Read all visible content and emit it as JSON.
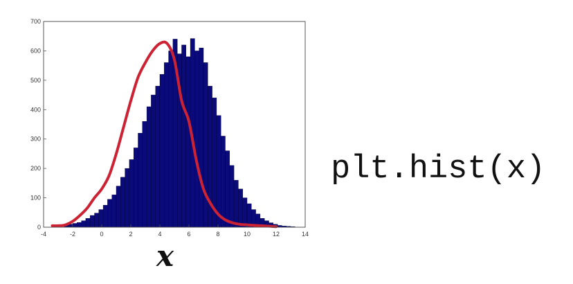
{
  "code_text": "plt.hist(x)",
  "x_axis_label": "x",
  "colors": {
    "bar_fill": "#0a0a7a",
    "bar_edge": "#000033",
    "curve": "#cc2233",
    "axis": "#555555"
  },
  "chart_data": {
    "type": "bar",
    "bin_width": 0.3,
    "bin_start": -2.6,
    "values": [
      8,
      10,
      13,
      16,
      22,
      30,
      40,
      48,
      60,
      75,
      95,
      110,
      140,
      170,
      200,
      230,
      270,
      320,
      360,
      410,
      450,
      480,
      520,
      560,
      600,
      640,
      590,
      620,
      580,
      642,
      600,
      610,
      560,
      480,
      440,
      380,
      310,
      260,
      210,
      160,
      130,
      100,
      80,
      60,
      45,
      30,
      22,
      15,
      10,
      6,
      4,
      3,
      2
    ],
    "density_curve": {
      "x": [
        -3.4,
        -3.0,
        -2.5,
        -2.0,
        -1.5,
        -1.0,
        -0.5,
        0.0,
        0.5,
        1.0,
        1.5,
        2.0,
        2.5,
        3.0,
        3.5,
        4.0,
        4.5,
        5.0,
        5.5,
        6.0,
        6.5,
        7.0,
        7.5,
        8.0,
        8.5,
        9.0,
        9.5,
        10.0,
        11.0,
        12.0
      ],
      "y": [
        5,
        5,
        8,
        20,
        40,
        65,
        100,
        130,
        175,
        250,
        340,
        430,
        510,
        560,
        600,
        625,
        625,
        570,
        430,
        360,
        230,
        130,
        80,
        45,
        25,
        15,
        10,
        8,
        5,
        2
      ]
    },
    "xlim": [
      -4,
      14
    ],
    "ylim": [
      0,
      700
    ],
    "x_ticks": [
      -4,
      -2,
      0,
      2,
      4,
      6,
      8,
      10,
      12,
      14
    ],
    "y_ticks": [
      0,
      100,
      200,
      300,
      400,
      500,
      600,
      700
    ]
  }
}
